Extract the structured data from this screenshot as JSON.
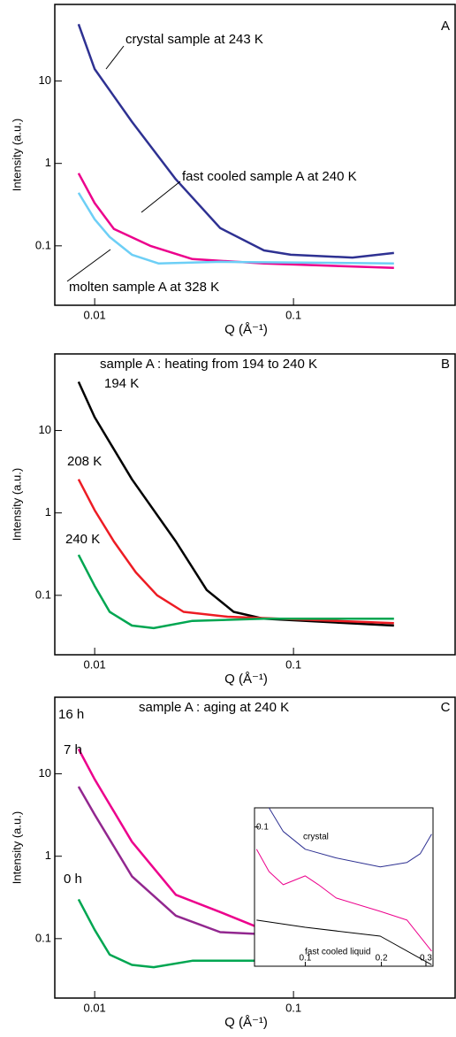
{
  "chart_data": [
    {
      "type": "line",
      "label": "A",
      "log_x": true,
      "log_y": true,
      "x_label": "Q (Å⁻¹)",
      "y_label": "Intensity (a.u.)",
      "xlim": [
        0.0063,
        0.65
      ],
      "ylim": [
        0.019,
        85
      ],
      "xticks": [
        0.01,
        0.1
      ],
      "yticks": [
        0.1,
        1,
        10
      ],
      "annotations": [
        "crystal sample at 243 K",
        "fast cooled sample A at 240 K",
        "molten sample A at 328 K"
      ],
      "series": [
        {
          "name": "crystal sample at 243 K",
          "color": "#2e3192",
          "x": [
            0.0083,
            0.01,
            0.0154,
            0.0256,
            0.0428,
            0.071,
            0.097,
            0.198,
            0.32
          ],
          "values": [
            49,
            14,
            3.2,
            0.64,
            0.164,
            0.088,
            0.078,
            0.072,
            0.082
          ]
        },
        {
          "name": "fast cooled sample A at 240 K",
          "color": "#ec008c",
          "x": [
            0.0083,
            0.01,
            0.0125,
            0.019,
            0.031,
            0.071,
            0.32
          ],
          "values": [
            0.76,
            0.33,
            0.16,
            0.1,
            0.069,
            0.061,
            0.054
          ]
        },
        {
          "name": "molten sample A at 328 K",
          "color": "#6dcff6",
          "x": [
            0.0083,
            0.01,
            0.0119,
            0.0154,
            0.021,
            0.0428,
            0.32
          ],
          "values": [
            0.44,
            0.21,
            0.128,
            0.078,
            0.061,
            0.064,
            0.061
          ]
        }
      ]
    },
    {
      "type": "line",
      "label": "B",
      "log_x": true,
      "log_y": true,
      "x_label": "Q (Å⁻¹)",
      "y_label": "Intensity (a.u.)",
      "xlim": [
        0.0063,
        0.65
      ],
      "ylim": [
        0.019,
        85
      ],
      "xticks": [
        0.01,
        0.1
      ],
      "yticks": [
        0.1,
        1,
        10
      ],
      "annotations": [
        "sample A : heating from 194 to 240 K",
        "194 K",
        "208 K",
        "240 K"
      ],
      "series": [
        {
          "name": "194 K",
          "color": "#000000",
          "x": [
            0.0083,
            0.01,
            0.0154,
            0.0256,
            0.0366,
            0.05,
            0.071,
            0.32
          ],
          "values": [
            39,
            14.5,
            2.56,
            0.45,
            0.116,
            0.063,
            0.052,
            0.043
          ]
        },
        {
          "name": "208 K",
          "color": "#ed1c24",
          "x": [
            0.0083,
            0.01,
            0.0125,
            0.0161,
            0.0206,
            0.028,
            0.0466,
            0.32
          ],
          "values": [
            2.56,
            1.08,
            0.45,
            0.19,
            0.1,
            0.063,
            0.055,
            0.046
          ]
        },
        {
          "name": "240 K",
          "color": "#00a651",
          "x": [
            0.0083,
            0.01,
            0.0119,
            0.0154,
            0.0198,
            0.031,
            0.071,
            0.32
          ],
          "values": [
            0.31,
            0.13,
            0.063,
            0.043,
            0.04,
            0.049,
            0.052,
            0.052
          ]
        }
      ]
    },
    {
      "type": "line",
      "label": "C",
      "log_x": true,
      "log_y": true,
      "x_label": "Q (Å⁻¹)",
      "y_label": "Intensity (a.u.)",
      "xlim": [
        0.0063,
        0.65
      ],
      "ylim": [
        0.019,
        85
      ],
      "xticks": [
        0.01,
        0.1
      ],
      "yticks": [
        0.1,
        1,
        10
      ],
      "annotations": [
        "sample A : aging at 240 K",
        "16 h",
        "7 h",
        "0 h"
      ],
      "series": [
        {
          "name": "16 h",
          "color": "#ec008c",
          "x": [
            0.0083,
            0.01,
            0.0154,
            0.0256,
            0.0428,
            0.071,
            0.0935,
            0.131,
            0.32
          ],
          "values": [
            20,
            8.6,
            1.5,
            0.34,
            0.21,
            0.128,
            0.14,
            0.115,
            0.105
          ]
        },
        {
          "name": "7 h",
          "color": "#92278f",
          "x": [
            0.0083,
            0.01,
            0.0154,
            0.0256,
            0.0428,
            0.071,
            0.32
          ],
          "values": [
            7,
            3.2,
            0.57,
            0.19,
            0.12,
            0.113,
            0.1
          ]
        },
        {
          "name": "0 h",
          "color": "#00a651",
          "x": [
            0.0083,
            0.01,
            0.0119,
            0.0154,
            0.0198,
            0.031,
            0.071,
            0.32
          ],
          "values": [
            0.3,
            0.128,
            0.064,
            0.048,
            0.045,
            0.054,
            0.054,
            0.05
          ]
        }
      ]
    },
    {
      "type": "line",
      "log_x": true,
      "log_y": true,
      "xlim": [
        0.063,
        0.32
      ],
      "ylim": [
        0.03,
        0.118
      ],
      "xticks": [
        0.1,
        0.2,
        0.3
      ],
      "yticks": [
        0.1
      ],
      "annotations": [
        "crystal",
        "fast cooled liquid"
      ],
      "series": [
        {
          "name": "crystal",
          "color": "#2e3192",
          "x": [
            0.0719,
            0.0818,
            0.1,
            0.1325,
            0.198,
            0.2525,
            0.285,
            0.316
          ],
          "values": [
            0.118,
            0.0962,
            0.0825,
            0.0765,
            0.0708,
            0.0736,
            0.0794,
            0.094
          ]
        },
        {
          "name": "fast cooled liquid",
          "color": "#000000",
          "x": [
            0.0642,
            0.1,
            0.198,
            0.316
          ],
          "values": [
            0.0447,
            0.042,
            0.0389,
            0.0304
          ]
        },
        {
          "color": "#ec008c",
          "x": [
            0.0642,
            0.0719,
            0.0818,
            0.1,
            0.1128,
            0.1325,
            0.198,
            0.2525,
            0.316
          ],
          "values": [
            0.0825,
            0.068,
            0.0607,
            0.0655,
            0.0607,
            0.0541,
            0.0482,
            0.0447,
            0.0342
          ]
        }
      ]
    }
  ]
}
